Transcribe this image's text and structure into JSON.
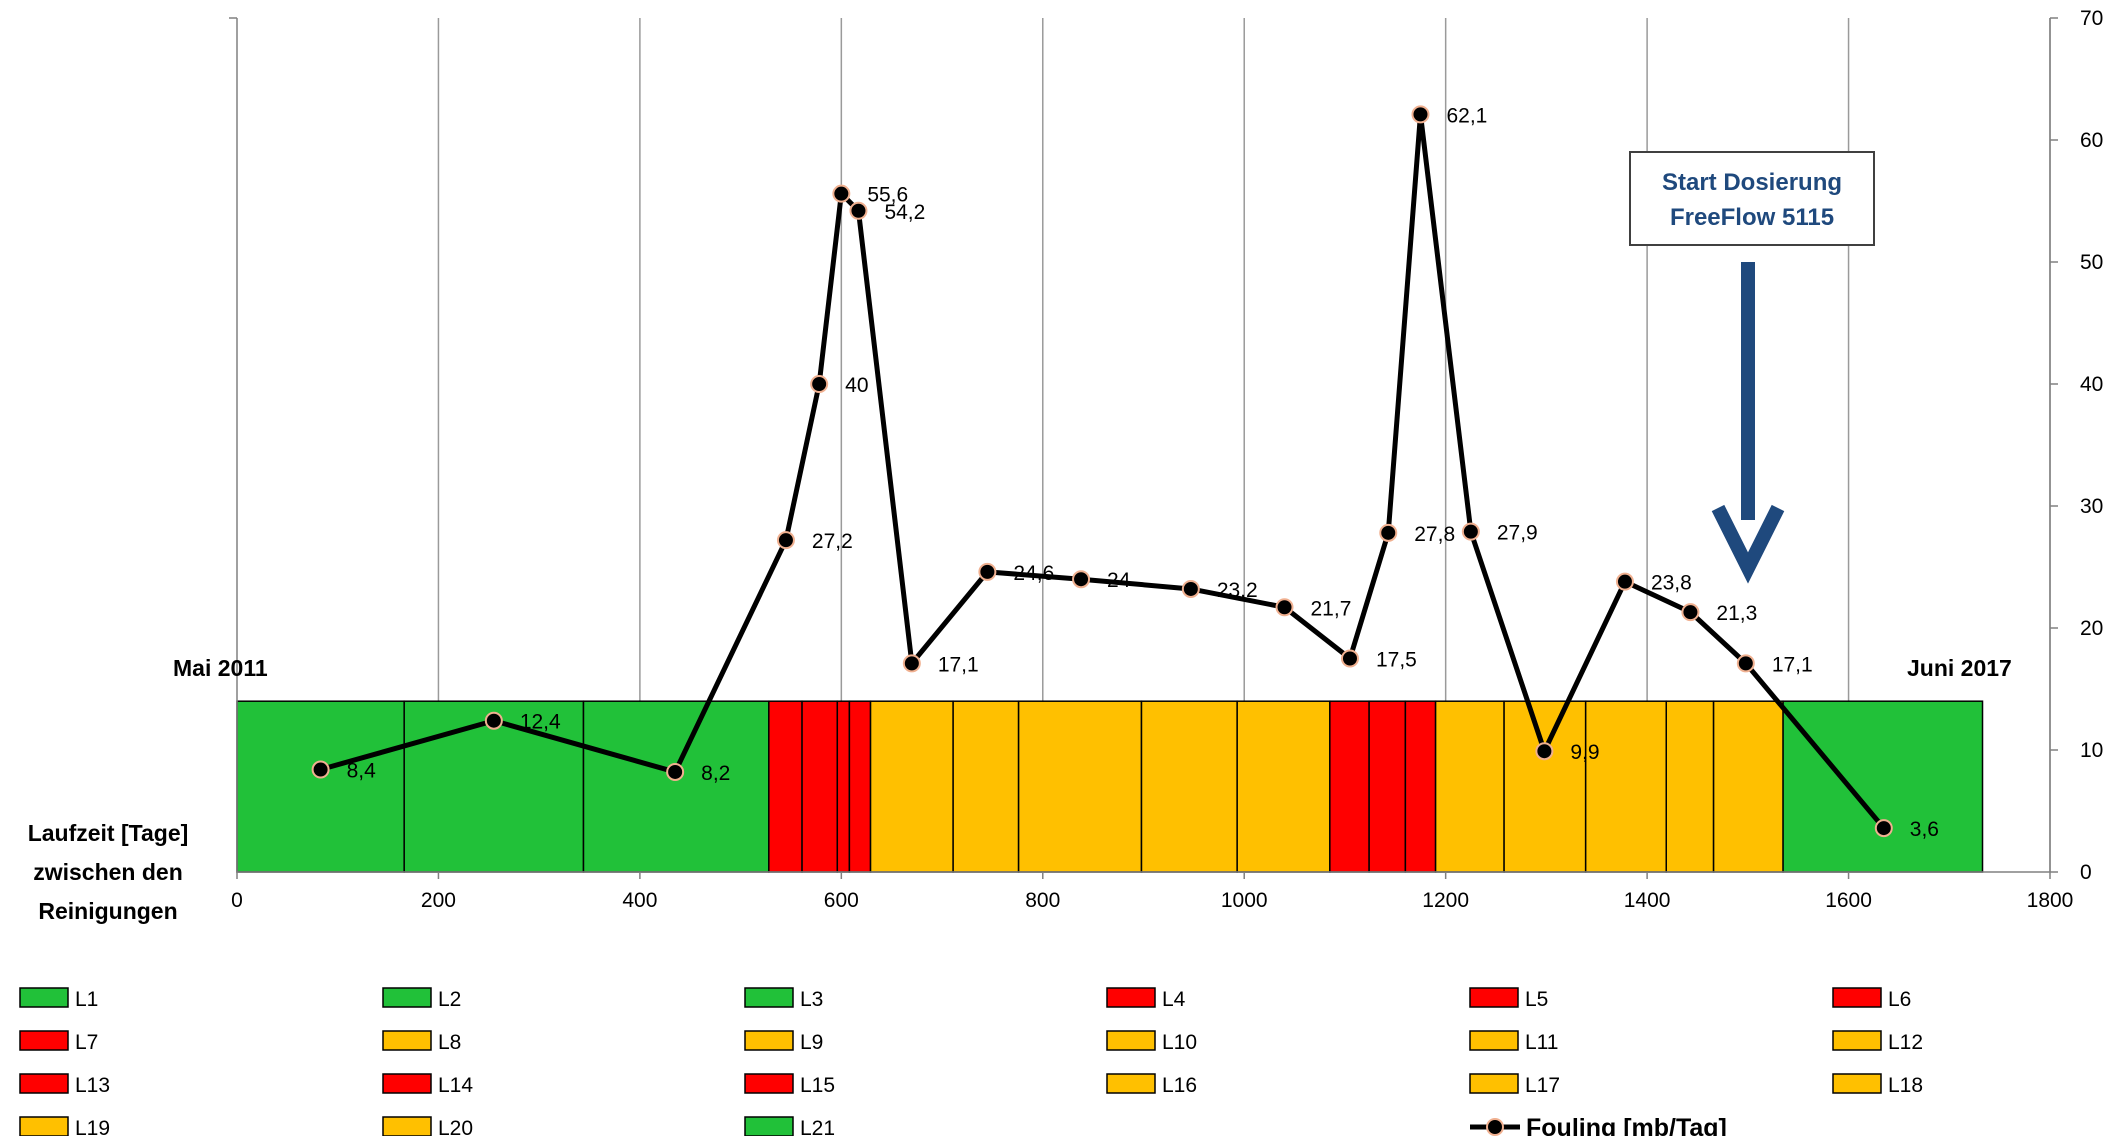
{
  "chart_data": {
    "type": "line",
    "x_axis": {
      "min": 0,
      "max": 1800,
      "ticks": [
        0,
        200,
        400,
        600,
        800,
        1000,
        1200,
        1400,
        1600,
        1800
      ]
    },
    "y_axis": {
      "min": 0,
      "max": 70,
      "ticks": [
        0,
        10,
        20,
        30,
        40,
        50,
        60,
        70
      ],
      "position": "right"
    },
    "grid": {
      "vertical": true,
      "horizontal": false
    },
    "left_label": [
      "Laufzeit [Tage]",
      "zwischen den",
      "Reinigungen"
    ],
    "start_label": "Mai 2011",
    "end_label": "Juni 2017",
    "series": [
      {
        "name": "Fouling [mb/Tag]",
        "color": "#000000",
        "marker_fill": "#000000",
        "marker_edge": "#f0b090",
        "points": [
          {
            "x": 83,
            "y": 8.4,
            "label": "8,4"
          },
          {
            "x": 255,
            "y": 12.4,
            "label": "12,4"
          },
          {
            "x": 435,
            "y": 8.2,
            "label": "8,2"
          },
          {
            "x": 545,
            "y": 27.2,
            "label": "27,2"
          },
          {
            "x": 578,
            "y": 40,
            "label": "40"
          },
          {
            "x": 600,
            "y": 55.6,
            "label": "55,6"
          },
          {
            "x": 617,
            "y": 54.2,
            "label": "54,2"
          },
          {
            "x": 670,
            "y": 17.1,
            "label": "17,1"
          },
          {
            "x": 745,
            "y": 24.6,
            "label": "24,6"
          },
          {
            "x": 838,
            "y": 24,
            "label": "24"
          },
          {
            "x": 947,
            "y": 23.2,
            "label": "23,2"
          },
          {
            "x": 1040,
            "y": 21.7,
            "label": "21,7"
          },
          {
            "x": 1105,
            "y": 17.5,
            "label": "17,5"
          },
          {
            "x": 1143,
            "y": 27.8,
            "label": "27,8"
          },
          {
            "x": 1175,
            "y": 62.1,
            "label": "62,1"
          },
          {
            "x": 1225,
            "y": 27.9,
            "label": "27,9"
          },
          {
            "x": 1298,
            "y": 9.9,
            "label": "9,9"
          },
          {
            "x": 1378,
            "y": 23.8,
            "label": "23,8"
          },
          {
            "x": 1443,
            "y": 21.3,
            "label": "21,3"
          },
          {
            "x": 1498,
            "y": 17.1,
            "label": "17,1"
          },
          {
            "x": 1635,
            "y": 3.6,
            "label": "3,6"
          }
        ]
      }
    ],
    "segments": [
      {
        "name": "L1",
        "start": 0,
        "end": 166,
        "color": "#21c139"
      },
      {
        "name": "L2",
        "start": 166,
        "end": 344,
        "color": "#21c139"
      },
      {
        "name": "L3",
        "start": 344,
        "end": 528,
        "color": "#21c139"
      },
      {
        "name": "L4",
        "start": 528,
        "end": 561,
        "color": "#ff0000"
      },
      {
        "name": "L5",
        "start": 561,
        "end": 596,
        "color": "#ff0000"
      },
      {
        "name": "L6",
        "start": 596,
        "end": 608,
        "color": "#ff0000"
      },
      {
        "name": "L7",
        "start": 608,
        "end": 629,
        "color": "#ff0000"
      },
      {
        "name": "L8",
        "start": 629,
        "end": 711,
        "color": "#ffc000"
      },
      {
        "name": "L9",
        "start": 711,
        "end": 776,
        "color": "#ffc000"
      },
      {
        "name": "L10",
        "start": 776,
        "end": 898,
        "color": "#ffc000"
      },
      {
        "name": "L11",
        "start": 898,
        "end": 993,
        "color": "#ffc000"
      },
      {
        "name": "L12",
        "start": 993,
        "end": 1085,
        "color": "#ffc000"
      },
      {
        "name": "L13",
        "start": 1085,
        "end": 1124,
        "color": "#ff0000"
      },
      {
        "name": "L14",
        "start": 1124,
        "end": 1160,
        "color": "#ff0000"
      },
      {
        "name": "L15",
        "start": 1160,
        "end": 1190,
        "color": "#ff0000"
      },
      {
        "name": "L16",
        "start": 1190,
        "end": 1258,
        "color": "#ffc000"
      },
      {
        "name": "L17",
        "start": 1258,
        "end": 1339,
        "color": "#ffc000"
      },
      {
        "name": "L18",
        "start": 1339,
        "end": 1419,
        "color": "#ffc000"
      },
      {
        "name": "L19",
        "start": 1419,
        "end": 1466,
        "color": "#ffc000"
      },
      {
        "name": "L20",
        "start": 1466,
        "end": 1535,
        "color": "#ffc000"
      },
      {
        "name": "L21",
        "start": 1535,
        "end": 1733,
        "color": "#21c139"
      }
    ],
    "annotation": {
      "lines": [
        "Start Dosierung",
        "FreeFlow 5115"
      ],
      "x": 1497,
      "color": "#1f497d"
    }
  }
}
